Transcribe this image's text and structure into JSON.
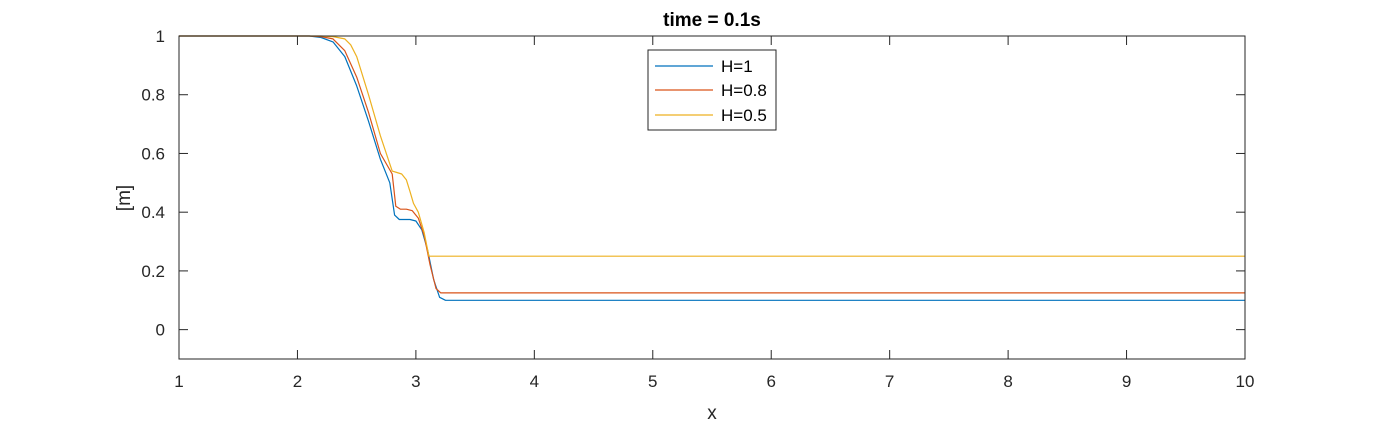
{
  "chart_data": {
    "type": "line",
    "title": "time = 0.1s",
    "xlabel": "x",
    "ylabel": "[m]",
    "xlim": [
      1,
      10
    ],
    "ylim": [
      -0.1,
      1
    ],
    "xticks": [
      1,
      2,
      3,
      4,
      5,
      6,
      7,
      8,
      9,
      10
    ],
    "yticks": [
      0,
      0.2,
      0.4,
      0.6,
      0.8,
      1
    ],
    "xtick_labels": [
      "1",
      "2",
      "3",
      "4",
      "5",
      "6",
      "7",
      "8",
      "9",
      "10"
    ],
    "ytick_labels": [
      "0",
      "0.2",
      "0.4",
      "0.6",
      "0.8",
      "1"
    ],
    "grid": false,
    "box": true,
    "legend_position": "top-center",
    "series": [
      {
        "name": "H=1",
        "color": "#0072BD",
        "x": [
          1,
          2.0,
          2.1,
          2.2,
          2.3,
          2.4,
          2.5,
          2.6,
          2.7,
          2.78,
          2.82,
          2.86,
          2.9,
          2.95,
          3.0,
          3.05,
          3.1,
          3.15,
          3.2,
          3.25,
          3.3,
          3.4,
          10
        ],
        "y": [
          1,
          1,
          1,
          0.995,
          0.98,
          0.93,
          0.83,
          0.71,
          0.58,
          0.5,
          0.39,
          0.375,
          0.375,
          0.375,
          0.37,
          0.34,
          0.27,
          0.17,
          0.11,
          0.1,
          0.1,
          0.1,
          0.1
        ]
      },
      {
        "name": "H=0.8",
        "color": "#D95319",
        "x": [
          1,
          2.0,
          2.1,
          2.2,
          2.3,
          2.4,
          2.5,
          2.6,
          2.7,
          2.8,
          2.83,
          2.87,
          2.92,
          2.97,
          3.02,
          3.07,
          3.12,
          3.17,
          3.21,
          3.3,
          10
        ],
        "y": [
          1,
          1,
          1,
          0.998,
          0.99,
          0.95,
          0.86,
          0.74,
          0.6,
          0.53,
          0.42,
          0.41,
          0.41,
          0.405,
          0.38,
          0.32,
          0.22,
          0.14,
          0.125,
          0.125,
          0.125
        ]
      },
      {
        "name": "H=0.5",
        "color": "#EDB120",
        "x": [
          1,
          2.0,
          2.2,
          2.3,
          2.4,
          2.45,
          2.5,
          2.6,
          2.7,
          2.8,
          2.84,
          2.88,
          2.92,
          2.95,
          2.98,
          3.02,
          3.07,
          3.11,
          3.15,
          10
        ],
        "y": [
          1,
          1,
          1,
          0.998,
          0.99,
          0.97,
          0.93,
          0.8,
          0.66,
          0.54,
          0.535,
          0.53,
          0.51,
          0.47,
          0.43,
          0.4,
          0.33,
          0.25,
          0.25,
          0.25
        ]
      }
    ]
  }
}
